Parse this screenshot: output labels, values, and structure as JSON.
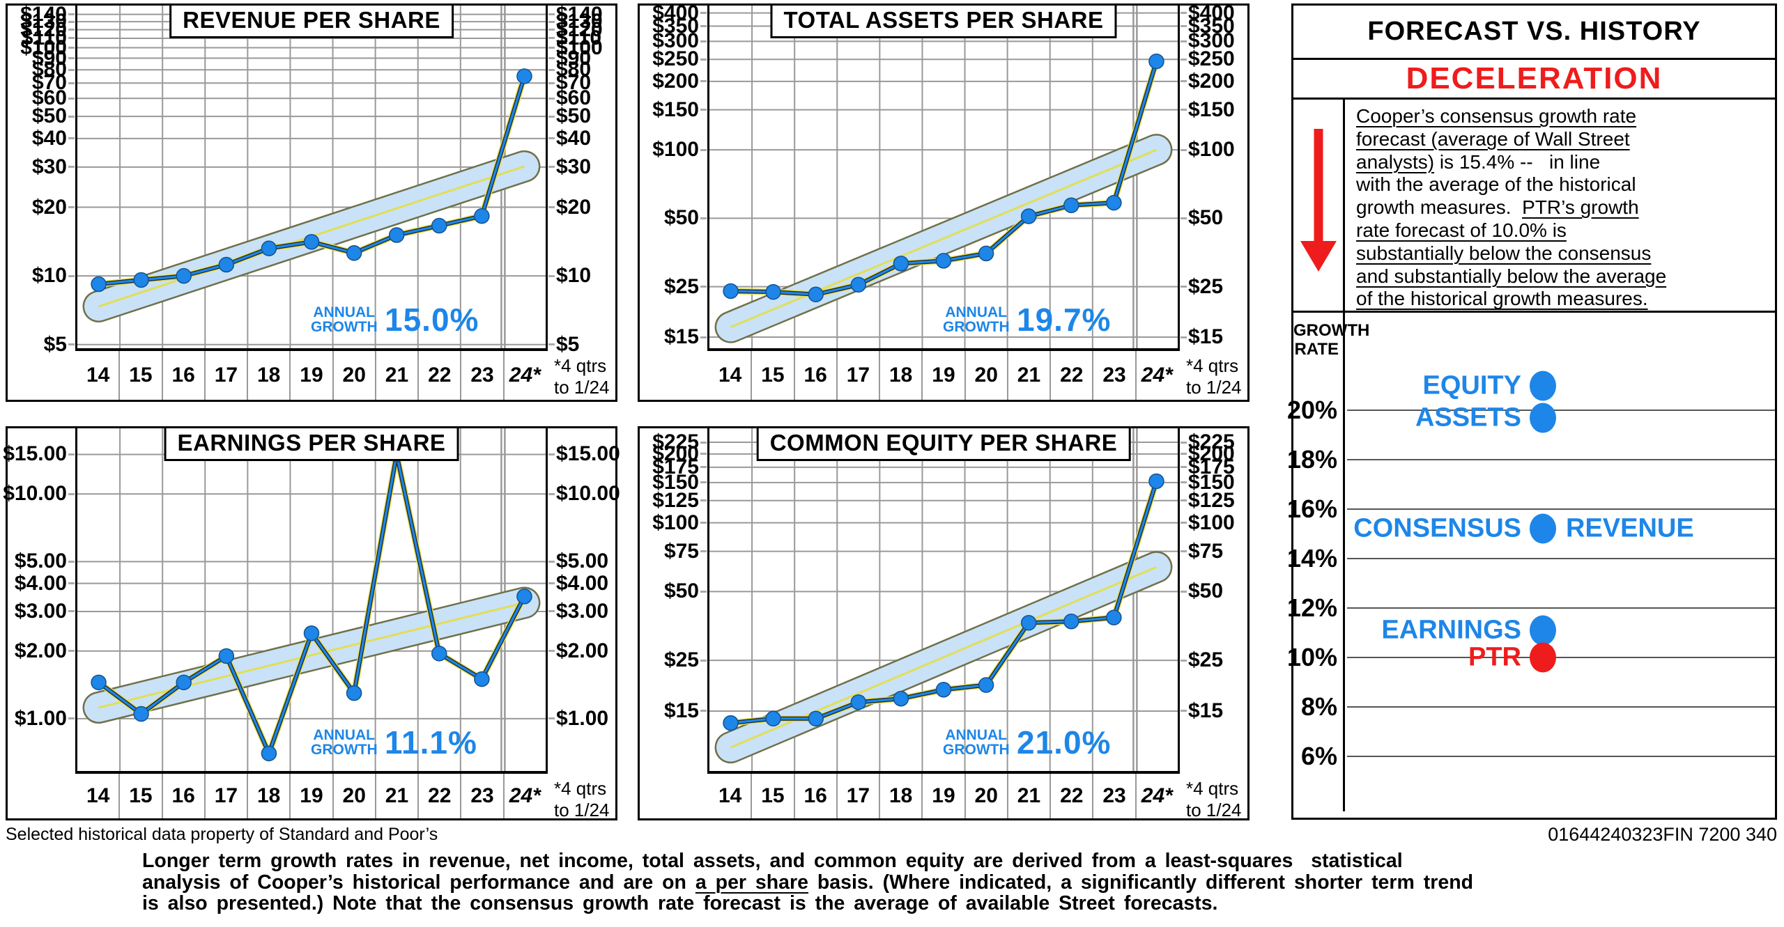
{
  "colors": {
    "line_blue": "#1d86e8",
    "channel_fill": "#c9e2f7",
    "channel_edge": "#70704a",
    "trend_yellow": "#e2de55",
    "grid_gray": "#999999",
    "status_red": "#ee1c1c"
  },
  "page": {
    "sp_footnote": "Selected historical data property of Standard and Poor’s",
    "doc_code": "01644240323FIN 7200 340",
    "bottom_paragraph": [
      [
        {
          "t": "Longer term growth rates in revenue, net income, total assets, and common equity are derived from a least-squares  statistical",
          "u": false
        }
      ],
      [
        {
          "t": "analysis of Cooper’s historical performance and are on ",
          "u": false
        },
        {
          "t": "a per share",
          "u": true
        },
        {
          "t": " basis. (Where indicated, a significantly different shorter term trend",
          "u": false
        }
      ],
      [
        {
          "t": "is also presented.) Note that the consensus growth rate forecast is the average of available Street forecasts.",
          "u": false
        }
      ]
    ]
  },
  "panel": {
    "title": "FORECAST VS. HISTORY",
    "status": "DECELERATION",
    "growth_rate_line1": "GROWTH",
    "growth_rate_line2": "RATE",
    "commentary": [
      [
        {
          "t": "Cooper’s consensus growth rate",
          "u": true
        }
      ],
      [
        {
          "t": "forecast (average of Wall Street",
          "u": true
        }
      ],
      [
        {
          "t": "analysts)",
          "u": true
        },
        {
          "t": " is 15.4% --   in line",
          "u": false
        }
      ],
      [
        {
          "t": "with the average of the historical",
          "u": false
        }
      ],
      [
        {
          "t": "growth measures.  ",
          "u": false
        },
        {
          "t": "PTR’s growth",
          "u": true
        }
      ],
      [
        {
          "t": "rate forecast of 10.0% is",
          "u": true
        }
      ],
      [
        {
          "t": "substantially below the consensus",
          "u": true
        }
      ],
      [
        {
          "t": "and substantially below the average",
          "u": true
        }
      ],
      [
        {
          "t": "of the historical growth measures.",
          "u": true
        }
      ]
    ]
  },
  "chart_data": [
    {
      "type": "line",
      "title": "REVENUE PER SHARE",
      "yscale": "log",
      "ylim": [
        4.82,
        153
      ],
      "x_categories": [
        "14",
        "15",
        "16",
        "17",
        "18",
        "19",
        "20",
        "21",
        "22",
        "23",
        "24*"
      ],
      "values": [
        9.2,
        9.6,
        10.0,
        11.2,
        13.2,
        14.1,
        12.6,
        15.1,
        16.6,
        18.3,
        75
      ],
      "yticks": [
        {
          "label": "$140",
          "value": 140
        },
        {
          "label": "$130",
          "value": 130
        },
        {
          "label": "$120",
          "value": 120
        },
        {
          "label": "$110",
          "value": 110
        },
        {
          "label": "$100",
          "value": 100
        },
        {
          "label": "$90",
          "value": 90
        },
        {
          "label": "$80",
          "value": 80
        },
        {
          "label": "$70",
          "value": 70
        },
        {
          "label": "$60",
          "value": 60
        },
        {
          "label": "$50",
          "value": 50
        },
        {
          "label": "$40",
          "value": 40
        },
        {
          "label": "$30",
          "value": 30
        },
        {
          "label": "$20",
          "value": 20
        },
        {
          "label": "$10",
          "value": 10
        },
        {
          "label": "$5",
          "value": 5
        }
      ],
      "trend_channel": {
        "start_value": 7.35,
        "end_value": 30.2
      },
      "growth_label_line1": "ANNUAL",
      "growth_label_line2": "GROWTH",
      "growth_value": "15.0%",
      "footnote_line1": "*4 qtrs",
      "footnote_line2": "to 1/24"
    },
    {
      "type": "line",
      "title": "TOTAL ASSETS PER SHARE",
      "yscale": "log",
      "ylim": [
        13.4,
        431
      ],
      "x_categories": [
        "14",
        "15",
        "16",
        "17",
        "18",
        "19",
        "20",
        "21",
        "22",
        "23",
        "24*"
      ],
      "values": [
        23.9,
        23.7,
        23.1,
        25.5,
        31.6,
        32.5,
        35,
        51,
        57,
        58.5,
        245
      ],
      "yticks": [
        {
          "label": "$400",
          "value": 400
        },
        {
          "label": "$350",
          "value": 350
        },
        {
          "label": "$300",
          "value": 300
        },
        {
          "label": "$250",
          "value": 250
        },
        {
          "label": "$200",
          "value": 200
        },
        {
          "label": "$150",
          "value": 150
        },
        {
          "label": "$100",
          "value": 100
        },
        {
          "label": "$50",
          "value": 50
        },
        {
          "label": "$25",
          "value": 25
        },
        {
          "label": "$15",
          "value": 15
        }
      ],
      "trend_channel": {
        "start_value": 16.6,
        "end_value": 100
      },
      "growth_label_line1": "ANNUAL",
      "growth_label_line2": "GROWTH",
      "growth_value": "19.7%",
      "footnote_line1": "*4 qtrs",
      "footnote_line2": "to 1/24"
    },
    {
      "type": "line",
      "title": "EARNINGS PER SHARE",
      "yscale": "log",
      "ylim": [
        0.585,
        19.6
      ],
      "x_categories": [
        "14",
        "15",
        "16",
        "17",
        "18",
        "19",
        "20",
        "21",
        "22",
        "23",
        "24*"
      ],
      "values": [
        1.45,
        1.05,
        1.45,
        1.9,
        0.7,
        2.4,
        1.3,
        15.0,
        1.95,
        1.5,
        3.5
      ],
      "yticks": [
        {
          "label": "$15.00",
          "value": 15
        },
        {
          "label": "$10.00",
          "value": 10
        },
        {
          "label": "$5.00",
          "value": 5
        },
        {
          "label": "$4.00",
          "value": 4
        },
        {
          "label": "$3.00",
          "value": 3
        },
        {
          "label": "$2.00",
          "value": 2
        },
        {
          "label": "$1.00",
          "value": 1
        }
      ],
      "trend_channel": {
        "start_value": 1.12,
        "end_value": 3.28
      },
      "growth_label_line1": "ANNUAL",
      "growth_label_line2": "GROWTH",
      "growth_value": "11.1%",
      "footnote_line1": "*4 qtrs",
      "footnote_line2": "to 1/24"
    },
    {
      "type": "line",
      "title": "COMMON EQUITY PER SHARE",
      "yscale": "log",
      "ylim": [
        8.2,
        259
      ],
      "x_categories": [
        "14",
        "15",
        "16",
        "17",
        "18",
        "19",
        "20",
        "21",
        "22",
        "23",
        "24*"
      ],
      "values": [
        13.3,
        13.9,
        13.9,
        16.4,
        17.0,
        18.6,
        19.5,
        36.5,
        37,
        38.5,
        152
      ],
      "yticks": [
        {
          "label": "$225",
          "value": 225
        },
        {
          "label": "$200",
          "value": 200
        },
        {
          "label": "$175",
          "value": 175
        },
        {
          "label": "$150",
          "value": 150
        },
        {
          "label": "$125",
          "value": 125
        },
        {
          "label": "$100",
          "value": 100
        },
        {
          "label": "$75",
          "value": 75
        },
        {
          "label": "$50",
          "value": 50
        },
        {
          "label": "$25",
          "value": 25
        },
        {
          "label": "$15",
          "value": 15
        }
      ],
      "trend_channel": {
        "start_value": 10.4,
        "end_value": 64
      },
      "growth_label_line1": "ANNUAL",
      "growth_label_line2": "GROWTH",
      "growth_value": "21.0%",
      "footnote_line1": "*4 qtrs",
      "footnote_line2": "to 1/24"
    },
    {
      "type": "scatter",
      "title": "GROWTH RATE SCALE",
      "ylim": [
        3.7,
        24.0
      ],
      "yticks": [
        "20%",
        "18%",
        "16%",
        "14%",
        "12%",
        "10%",
        "8%",
        "6%"
      ],
      "tick_values": [
        20,
        18,
        16,
        14,
        12,
        10,
        8,
        6
      ],
      "points": [
        {
          "label": "EQUITY",
          "value": 21.0,
          "color": "#1d86e8"
        },
        {
          "label": "ASSETS",
          "value": 19.7,
          "color": "#1d86e8"
        },
        {
          "label": "CONSENSUS",
          "value": 15.2,
          "color": "#1d86e8",
          "label_right": "REVENUE"
        },
        {
          "label": "EARNINGS",
          "value": 11.1,
          "color": "#1d86e8"
        },
        {
          "label": "PTR",
          "value": 10.0,
          "color": "#ee1c1c"
        }
      ]
    }
  ]
}
